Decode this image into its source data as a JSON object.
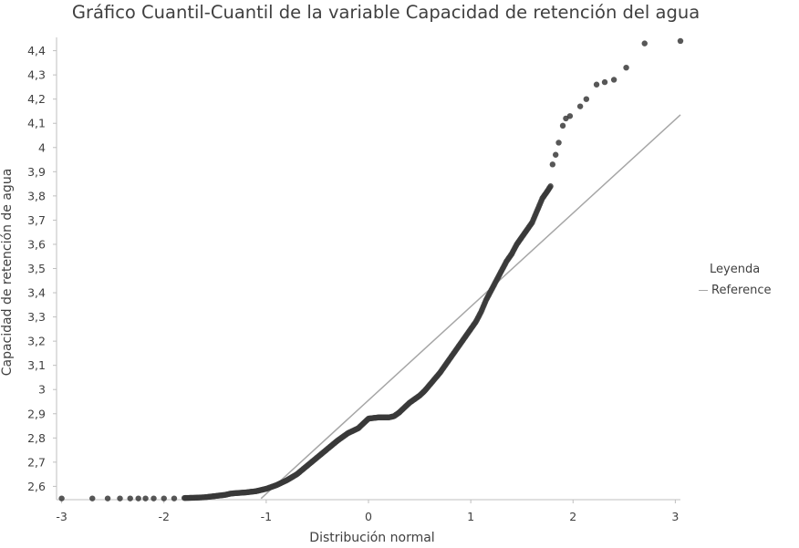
{
  "chart_data": {
    "type": "scatter",
    "title": "Gráfico Cuantil-Cuantil de la variable Capacidad de retención del agua",
    "xlabel": "Distribución normal",
    "ylabel": "Capacidad de retención de agua",
    "xlim": [
      -3.05,
      3.05
    ],
    "ylim": [
      2.545,
      4.455
    ],
    "xticks": [
      -3,
      -2,
      -1,
      0,
      1,
      2,
      3
    ],
    "xtick_labels": [
      "-3",
      "-2",
      "-1",
      "0",
      "1",
      "2",
      "3"
    ],
    "yticks": [
      2.6,
      2.7,
      2.8,
      2.9,
      3.0,
      3.1,
      3.2,
      3.3,
      3.4,
      3.5,
      3.6,
      3.7,
      3.8,
      3.9,
      4.0,
      4.1,
      4.2,
      4.3,
      4.4
    ],
    "ytick_labels": [
      "2,6",
      "2,7",
      "2,8",
      "2,9",
      "3",
      "3,1",
      "3,2",
      "3,3",
      "3,4",
      "3,5",
      "3,6",
      "3,7",
      "3,8",
      "3,9",
      "4",
      "4,1",
      "4,2",
      "4,3",
      "4,4"
    ],
    "grid": false,
    "point_color": "#3a3a3a",
    "reference_color": "#a6a6a6",
    "series": [
      {
        "points": [
          [
            -3.0,
            2.55
          ],
          [
            -2.7,
            2.55
          ],
          [
            -2.55,
            2.55
          ],
          [
            -2.43,
            2.55
          ],
          [
            -2.33,
            2.55
          ],
          [
            -2.25,
            2.55
          ],
          [
            -2.18,
            2.55
          ],
          [
            -2.1,
            2.55
          ],
          [
            -2.0,
            2.55
          ],
          [
            -1.9,
            2.55
          ],
          [
            -1.8,
            2.552
          ],
          [
            -1.7,
            2.553
          ],
          [
            -1.6,
            2.555
          ],
          [
            -1.5,
            2.56
          ],
          [
            -1.4,
            2.565
          ],
          [
            -1.35,
            2.57
          ],
          [
            -1.3,
            2.572
          ],
          [
            -1.2,
            2.575
          ],
          [
            -1.1,
            2.58
          ],
          [
            -1.0,
            2.59
          ],
          [
            -0.9,
            2.605
          ],
          [
            -0.8,
            2.625
          ],
          [
            -0.7,
            2.65
          ],
          [
            -0.6,
            2.685
          ],
          [
            -0.5,
            2.72
          ],
          [
            -0.4,
            2.755
          ],
          [
            -0.3,
            2.79
          ],
          [
            -0.2,
            2.82
          ],
          [
            -0.1,
            2.84
          ],
          [
            -0.05,
            2.86
          ],
          [
            0.0,
            2.88
          ],
          [
            0.1,
            2.885
          ],
          [
            0.2,
            2.885
          ],
          [
            0.25,
            2.89
          ],
          [
            0.3,
            2.905
          ],
          [
            0.35,
            2.925
          ],
          [
            0.4,
            2.945
          ],
          [
            0.45,
            2.96
          ],
          [
            0.5,
            2.975
          ],
          [
            0.55,
            2.995
          ],
          [
            0.6,
            3.02
          ],
          [
            0.65,
            3.045
          ],
          [
            0.7,
            3.07
          ],
          [
            0.75,
            3.1
          ],
          [
            0.8,
            3.13
          ],
          [
            0.85,
            3.16
          ],
          [
            0.9,
            3.19
          ],
          [
            0.95,
            3.22
          ],
          [
            1.0,
            3.25
          ],
          [
            1.05,
            3.28
          ],
          [
            1.1,
            3.32
          ],
          [
            1.15,
            3.37
          ],
          [
            1.2,
            3.41
          ],
          [
            1.25,
            3.45
          ],
          [
            1.3,
            3.49
          ],
          [
            1.35,
            3.53
          ],
          [
            1.4,
            3.56
          ],
          [
            1.45,
            3.6
          ],
          [
            1.5,
            3.63
          ],
          [
            1.55,
            3.66
          ],
          [
            1.6,
            3.69
          ],
          [
            1.65,
            3.74
          ],
          [
            1.7,
            3.79
          ],
          [
            1.75,
            3.82
          ],
          [
            1.78,
            3.84
          ],
          [
            1.8,
            3.93
          ],
          [
            1.83,
            3.97
          ],
          [
            1.86,
            4.02
          ],
          [
            1.9,
            4.09
          ],
          [
            1.93,
            4.12
          ],
          [
            1.97,
            4.13
          ],
          [
            2.07,
            4.17
          ],
          [
            2.13,
            4.2
          ],
          [
            2.23,
            4.26
          ],
          [
            2.31,
            4.27
          ],
          [
            2.4,
            4.28
          ],
          [
            2.52,
            4.33
          ],
          [
            2.7,
            4.43
          ],
          [
            3.05,
            4.44
          ]
        ]
      }
    ],
    "reference_line": {
      "name": "Reference",
      "x": [
        -1.05,
        3.05
      ],
      "y": [
        2.55,
        4.135
      ]
    },
    "legend": {
      "title": "Leyenda",
      "placement": "right",
      "entries": [
        "Reference"
      ]
    }
  }
}
